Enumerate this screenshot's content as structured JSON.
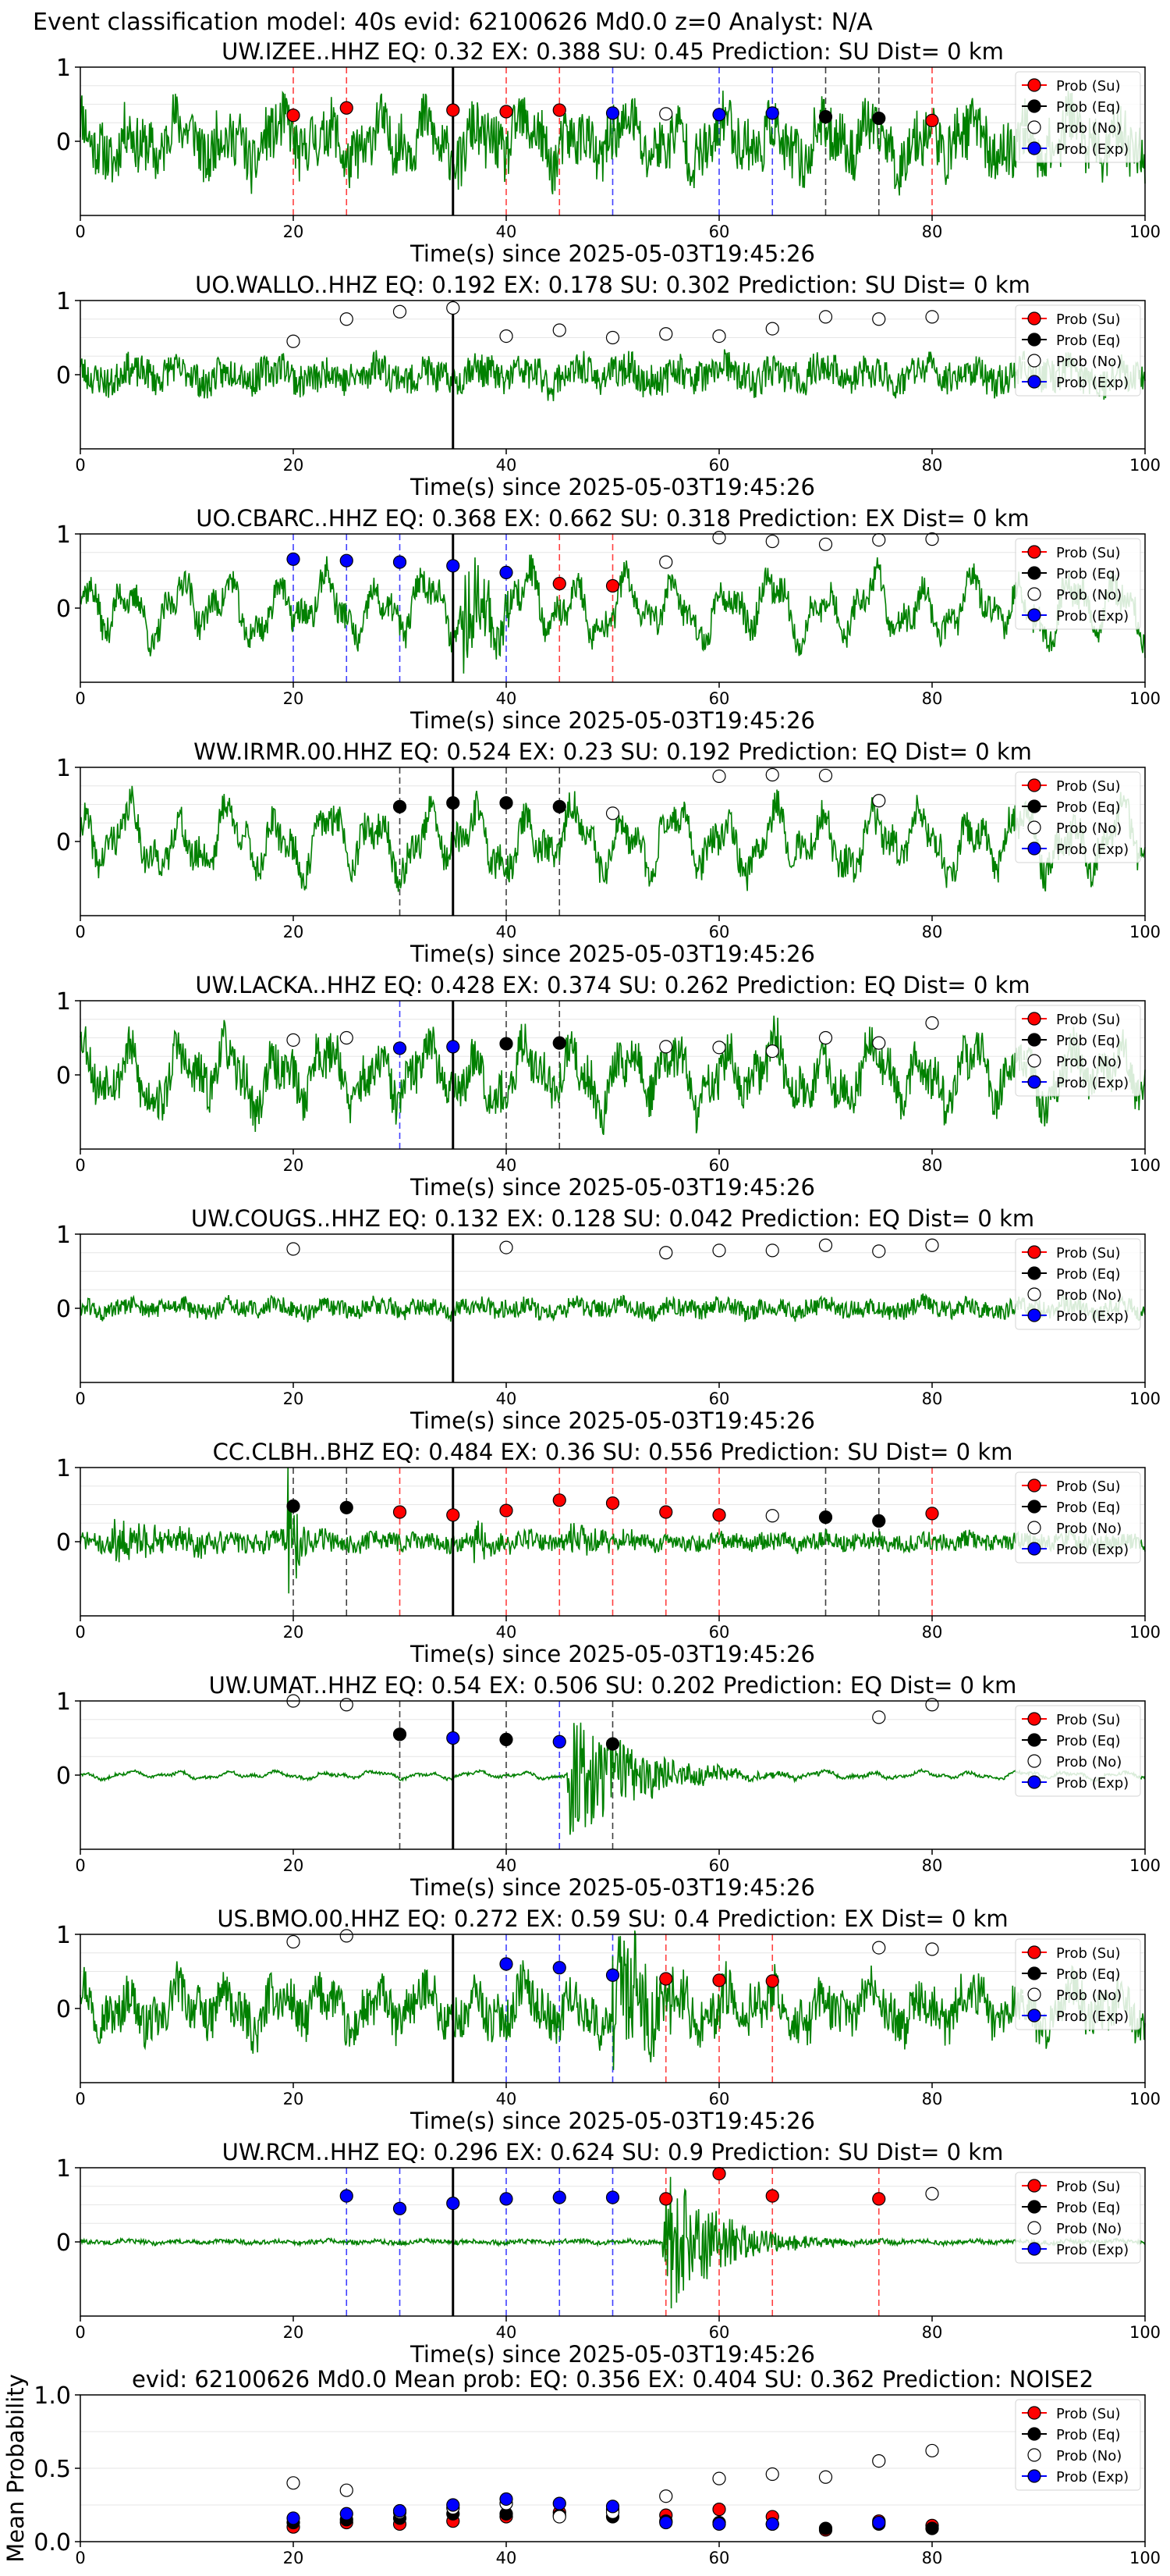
{
  "figure_title": "Event classification model: 40s evid: 62100626 Md0.0 z=0 Analyst: N/A",
  "xlabel": "Time(s) since 2025-05-03T19:45:26",
  "legend": [
    "Prob (Su)",
    "Prob (Eq)",
    "Prob (No)",
    "Prob (Exp)"
  ],
  "colors": {
    "su": "#ff0000",
    "eq": "#000000",
    "no": "#ffffff",
    "exp": "#0000ff",
    "trace": "#008000",
    "grid": "#e6e6e6"
  },
  "chart_data": [
    {
      "type": "line",
      "title": "UW.IZEE..HHZ   EQ: 0.32  EX: 0.388  SU: 0.45   Prediction: SU    Dist= 0 km",
      "xlim": [
        0,
        100
      ],
      "ylim": [
        -1,
        1
      ],
      "yticks": [
        "1",
        "0"
      ],
      "xticks": [
        "0",
        "20",
        "40",
        "60",
        "80",
        "100"
      ],
      "trace": {
        "amp": 0.36,
        "noise": 0.38,
        "seed": 11,
        "events": []
      },
      "origin_marker": 35,
      "points": [
        {
          "x": 20,
          "y": 0.35,
          "c": "su"
        },
        {
          "x": 25,
          "y": 0.45,
          "c": "su"
        },
        {
          "x": 35,
          "y": 0.42,
          "c": "su"
        },
        {
          "x": 40,
          "y": 0.4,
          "c": "su"
        },
        {
          "x": 45,
          "y": 0.42,
          "c": "su"
        },
        {
          "x": 50,
          "y": 0.38,
          "c": "exp"
        },
        {
          "x": 55,
          "y": 0.37,
          "c": "no"
        },
        {
          "x": 60,
          "y": 0.36,
          "c": "exp"
        },
        {
          "x": 65,
          "y": 0.38,
          "c": "exp"
        },
        {
          "x": 70,
          "y": 0.33,
          "c": "eq"
        },
        {
          "x": 75,
          "y": 0.31,
          "c": "eq"
        },
        {
          "x": 80,
          "y": 0.28,
          "c": "su"
        }
      ]
    },
    {
      "type": "line",
      "title": "UO.WALLO..HHZ   EQ: 0.192  EX: 0.178  SU: 0.302   Prediction: SU    Dist= 0 km",
      "xlim": [
        0,
        100
      ],
      "ylim": [
        -1,
        1
      ],
      "yticks": [
        "1",
        "0"
      ],
      "xticks": [
        "0",
        "20",
        "40",
        "60",
        "80",
        "100"
      ],
      "trace": {
        "amp": 0.14,
        "noise": 0.22,
        "seed": 23,
        "events": []
      },
      "origin_marker": 35,
      "points": [
        {
          "x": 20,
          "y": 0.45,
          "c": "no"
        },
        {
          "x": 25,
          "y": 0.75,
          "c": "no"
        },
        {
          "x": 30,
          "y": 0.85,
          "c": "no"
        },
        {
          "x": 35,
          "y": 0.9,
          "c": "no"
        },
        {
          "x": 40,
          "y": 0.52,
          "c": "no"
        },
        {
          "x": 45,
          "y": 0.6,
          "c": "no"
        },
        {
          "x": 50,
          "y": 0.5,
          "c": "no"
        },
        {
          "x": 55,
          "y": 0.55,
          "c": "no"
        },
        {
          "x": 60,
          "y": 0.52,
          "c": "no"
        },
        {
          "x": 65,
          "y": 0.62,
          "c": "no"
        },
        {
          "x": 70,
          "y": 0.78,
          "c": "no"
        },
        {
          "x": 75,
          "y": 0.75,
          "c": "no"
        },
        {
          "x": 80,
          "y": 0.78,
          "c": "no"
        }
      ]
    },
    {
      "type": "line",
      "title": "UO.CBARC..HHZ   EQ: 0.368  EX: 0.662  SU: 0.318   Prediction: EX    Dist= 0 km",
      "xlim": [
        0,
        100
      ],
      "ylim": [
        -1,
        1
      ],
      "yticks": [
        "1",
        "0"
      ],
      "xticks": [
        "0",
        "20",
        "40",
        "60",
        "80",
        "100"
      ],
      "trace": {
        "amp": 0.5,
        "noise": 0.2,
        "seed": 37,
        "events": [
          {
            "t": 36,
            "w": 3,
            "a": 0.8
          }
        ]
      },
      "origin_marker": 35,
      "points": [
        {
          "x": 20,
          "y": 0.66,
          "c": "exp"
        },
        {
          "x": 25,
          "y": 0.64,
          "c": "exp"
        },
        {
          "x": 30,
          "y": 0.62,
          "c": "exp"
        },
        {
          "x": 35,
          "y": 0.57,
          "c": "exp"
        },
        {
          "x": 40,
          "y": 0.48,
          "c": "exp"
        },
        {
          "x": 45,
          "y": 0.33,
          "c": "su"
        },
        {
          "x": 50,
          "y": 0.3,
          "c": "su"
        },
        {
          "x": 55,
          "y": 0.62,
          "c": "no"
        },
        {
          "x": 60,
          "y": 0.95,
          "c": "no"
        },
        {
          "x": 65,
          "y": 0.9,
          "c": "no"
        },
        {
          "x": 70,
          "y": 0.86,
          "c": "no"
        },
        {
          "x": 75,
          "y": 0.92,
          "c": "no"
        },
        {
          "x": 80,
          "y": 0.93,
          "c": "no"
        }
      ]
    },
    {
      "type": "line",
      "title": "WW.IRMR.00.HHZ   EQ: 0.524  EX: 0.23  SU: 0.192   Prediction: EQ    Dist= 0 km",
      "xlim": [
        0,
        100
      ],
      "ylim": [
        -1,
        1
      ],
      "yticks": [
        "1",
        "0"
      ],
      "xticks": [
        "0",
        "20",
        "40",
        "60",
        "80",
        "100"
      ],
      "trace": {
        "amp": 0.52,
        "noise": 0.22,
        "seed": 41,
        "events": []
      },
      "origin_marker": 35,
      "points": [
        {
          "x": 30,
          "y": 0.47,
          "c": "eq"
        },
        {
          "x": 35,
          "y": 0.52,
          "c": "eq"
        },
        {
          "x": 40,
          "y": 0.52,
          "c": "eq"
        },
        {
          "x": 45,
          "y": 0.47,
          "c": "eq"
        },
        {
          "x": 50,
          "y": 0.38,
          "c": "no"
        },
        {
          "x": 60,
          "y": 0.88,
          "c": "no"
        },
        {
          "x": 65,
          "y": 0.9,
          "c": "no"
        },
        {
          "x": 70,
          "y": 0.89,
          "c": "no"
        },
        {
          "x": 75,
          "y": 0.55,
          "c": "no"
        }
      ]
    },
    {
      "type": "line",
      "title": "UW.LACKA..HHZ   EQ: 0.428  EX: 0.374  SU: 0.262   Prediction: EQ    Dist= 0 km",
      "xlim": [
        0,
        100
      ],
      "ylim": [
        -1,
        1
      ],
      "yticks": [
        "1",
        "0"
      ],
      "xticks": [
        "0",
        "20",
        "40",
        "60",
        "80",
        "100"
      ],
      "trace": {
        "amp": 0.5,
        "noise": 0.3,
        "seed": 53,
        "events": []
      },
      "origin_marker": 35,
      "points": [
        {
          "x": 20,
          "y": 0.47,
          "c": "no"
        },
        {
          "x": 25,
          "y": 0.5,
          "c": "no"
        },
        {
          "x": 30,
          "y": 0.36,
          "c": "exp"
        },
        {
          "x": 35,
          "y": 0.38,
          "c": "exp"
        },
        {
          "x": 40,
          "y": 0.42,
          "c": "eq"
        },
        {
          "x": 45,
          "y": 0.43,
          "c": "eq"
        },
        {
          "x": 55,
          "y": 0.38,
          "c": "no"
        },
        {
          "x": 60,
          "y": 0.37,
          "c": "no"
        },
        {
          "x": 65,
          "y": 0.32,
          "c": "no"
        },
        {
          "x": 70,
          "y": 0.5,
          "c": "no"
        },
        {
          "x": 75,
          "y": 0.43,
          "c": "no"
        },
        {
          "x": 80,
          "y": 0.7,
          "c": "no"
        }
      ]
    },
    {
      "type": "line",
      "title": "UW.COUGS..HHZ   EQ: 0.132  EX: 0.128  SU: 0.042   Prediction: EQ    Dist= 0 km",
      "xlim": [
        0,
        100
      ],
      "ylim": [
        -1,
        1
      ],
      "yticks": [
        "1",
        "0"
      ],
      "xticks": [
        "0",
        "20",
        "40",
        "60",
        "80",
        "100"
      ],
      "trace": {
        "amp": 0.08,
        "noise": 0.12,
        "seed": 61,
        "events": []
      },
      "origin_marker": 35,
      "points": [
        {
          "x": 20,
          "y": 0.8,
          "c": "no"
        },
        {
          "x": 40,
          "y": 0.82,
          "c": "no"
        },
        {
          "x": 55,
          "y": 0.75,
          "c": "no"
        },
        {
          "x": 60,
          "y": 0.78,
          "c": "no"
        },
        {
          "x": 65,
          "y": 0.78,
          "c": "no"
        },
        {
          "x": 70,
          "y": 0.85,
          "c": "no"
        },
        {
          "x": 75,
          "y": 0.77,
          "c": "no"
        },
        {
          "x": 80,
          "y": 0.85,
          "c": "no"
        }
      ]
    },
    {
      "type": "line",
      "title": "CC.CLBH..BHZ   EQ: 0.484  EX: 0.36  SU: 0.556   Prediction: SU    Dist= 0 km",
      "xlim": [
        0,
        100
      ],
      "ylim": [
        -1,
        1
      ],
      "yticks": [
        "1",
        "0"
      ],
      "xticks": [
        "0",
        "20",
        "40",
        "60",
        "80",
        "100"
      ],
      "trace": {
        "amp": 0.05,
        "noise": 0.12,
        "seed": 71,
        "events": [
          {
            "t": 19.5,
            "w": 1.2,
            "a": 0.85
          },
          {
            "t": 3,
            "w": 8,
            "a": 0.25
          },
          {
            "t": 37,
            "w": 4,
            "a": 0.2
          },
          {
            "t": 46,
            "w": 3,
            "a": 0.25
          }
        ]
      },
      "origin_marker": 35,
      "points": [
        {
          "x": 20,
          "y": 0.48,
          "c": "eq"
        },
        {
          "x": 25,
          "y": 0.46,
          "c": "eq"
        },
        {
          "x": 30,
          "y": 0.4,
          "c": "su"
        },
        {
          "x": 35,
          "y": 0.36,
          "c": "su"
        },
        {
          "x": 40,
          "y": 0.42,
          "c": "su"
        },
        {
          "x": 45,
          "y": 0.56,
          "c": "su"
        },
        {
          "x": 50,
          "y": 0.52,
          "c": "su"
        },
        {
          "x": 55,
          "y": 0.4,
          "c": "su"
        },
        {
          "x": 60,
          "y": 0.36,
          "c": "su"
        },
        {
          "x": 65,
          "y": 0.35,
          "c": "no"
        },
        {
          "x": 70,
          "y": 0.33,
          "c": "eq"
        },
        {
          "x": 75,
          "y": 0.28,
          "c": "eq"
        },
        {
          "x": 80,
          "y": 0.38,
          "c": "su"
        }
      ]
    },
    {
      "type": "line",
      "title": "UW.UMAT..HHZ   EQ: 0.54  EX: 0.506  SU: 0.202   Prediction: EQ    Dist= 0 km",
      "xlim": [
        0,
        100
      ],
      "ylim": [
        -1,
        1
      ],
      "yticks": [
        "1",
        "0"
      ],
      "xticks": [
        "0",
        "20",
        "40",
        "60",
        "80",
        "100"
      ],
      "trace": {
        "amp": 0.06,
        "noise": 0.02,
        "seed": 83,
        "events": [
          {
            "t": 46,
            "w": 6,
            "a": 0.9
          }
        ]
      },
      "origin_marker": 35,
      "points": [
        {
          "x": 20,
          "y": 1.0,
          "c": "no"
        },
        {
          "x": 25,
          "y": 0.95,
          "c": "no"
        },
        {
          "x": 30,
          "y": 0.55,
          "c": "eq"
        },
        {
          "x": 35,
          "y": 0.5,
          "c": "exp"
        },
        {
          "x": 40,
          "y": 0.48,
          "c": "eq"
        },
        {
          "x": 45,
          "y": 0.45,
          "c": "exp"
        },
        {
          "x": 50,
          "y": 0.42,
          "c": "eq"
        },
        {
          "x": 75,
          "y": 0.78,
          "c": "no"
        },
        {
          "x": 80,
          "y": 0.95,
          "c": "no"
        }
      ]
    },
    {
      "type": "line",
      "title": "US.BMO.00.HHZ   EQ: 0.272  EX: 0.59  SU: 0.4   Prediction: EX    Dist= 0 km",
      "xlim": [
        0,
        100
      ],
      "ylim": [
        -1,
        1
      ],
      "yticks": [
        "1",
        "0"
      ],
      "xticks": [
        "0",
        "20",
        "40",
        "60",
        "80",
        "100"
      ],
      "trace": {
        "amp": 0.35,
        "noise": 0.3,
        "seed": 97,
        "events": [
          {
            "t": 50,
            "w": 5,
            "a": 0.9
          }
        ]
      },
      "origin_marker": 35,
      "points": [
        {
          "x": 20,
          "y": 0.9,
          "c": "no"
        },
        {
          "x": 25,
          "y": 0.98,
          "c": "no"
        },
        {
          "x": 40,
          "y": 0.6,
          "c": "exp"
        },
        {
          "x": 45,
          "y": 0.55,
          "c": "exp"
        },
        {
          "x": 50,
          "y": 0.45,
          "c": "exp"
        },
        {
          "x": 55,
          "y": 0.4,
          "c": "su"
        },
        {
          "x": 60,
          "y": 0.38,
          "c": "su"
        },
        {
          "x": 65,
          "y": 0.37,
          "c": "su"
        },
        {
          "x": 75,
          "y": 0.82,
          "c": "no"
        },
        {
          "x": 80,
          "y": 0.8,
          "c": "no"
        }
      ]
    },
    {
      "type": "line",
      "title": "UW.RCM..HHZ   EQ: 0.296  EX: 0.624  SU: 0.9   Prediction: SU    Dist= 0 km",
      "xlim": [
        0,
        100
      ],
      "ylim": [
        -1,
        1
      ],
      "yticks": [
        "1",
        "0"
      ],
      "xticks": [
        "0",
        "20",
        "40",
        "60",
        "80",
        "100"
      ],
      "trace": {
        "amp": 0.02,
        "noise": 0.03,
        "seed": 101,
        "events": [
          {
            "t": 55,
            "w": 5,
            "a": 0.95
          }
        ]
      },
      "origin_marker": 35,
      "points": [
        {
          "x": 25,
          "y": 0.62,
          "c": "exp"
        },
        {
          "x": 30,
          "y": 0.45,
          "c": "exp"
        },
        {
          "x": 35,
          "y": 0.52,
          "c": "exp"
        },
        {
          "x": 40,
          "y": 0.58,
          "c": "exp"
        },
        {
          "x": 45,
          "y": 0.6,
          "c": "exp"
        },
        {
          "x": 50,
          "y": 0.6,
          "c": "exp"
        },
        {
          "x": 55,
          "y": 0.58,
          "c": "su"
        },
        {
          "x": 60,
          "y": 0.92,
          "c": "su"
        },
        {
          "x": 65,
          "y": 0.62,
          "c": "su"
        },
        {
          "x": 75,
          "y": 0.58,
          "c": "su"
        },
        {
          "x": 80,
          "y": 0.65,
          "c": "no"
        }
      ]
    },
    {
      "type": "scatter",
      "title": "evid: 62100626  Md0.0   Mean prob:   EQ: 0.356  EX: 0.404  SU: 0.362   Prediction: NOISE2",
      "ylabel": "Mean Probability",
      "xlim": [
        0,
        100
      ],
      "ylim": [
        0,
        1
      ],
      "yticks": [
        "1.0",
        "0.5",
        "0.0"
      ],
      "xticks": [
        "0",
        "20",
        "40",
        "60",
        "80",
        "100"
      ],
      "series": [
        {
          "name": "Prob (Su)",
          "c": "su",
          "points": [
            [
              20,
              0.1
            ],
            [
              25,
              0.13
            ],
            [
              30,
              0.12
            ],
            [
              35,
              0.14
            ],
            [
              40,
              0.17
            ],
            [
              45,
              0.2
            ],
            [
              50,
              0.22
            ],
            [
              55,
              0.18
            ],
            [
              60,
              0.22
            ],
            [
              65,
              0.17
            ],
            [
              70,
              0.08
            ],
            [
              75,
              0.14
            ],
            [
              80,
              0.11
            ]
          ]
        },
        {
          "name": "Prob (Eq)",
          "c": "eq",
          "points": [
            [
              20,
              0.13
            ],
            [
              25,
              0.15
            ],
            [
              30,
              0.16
            ],
            [
              35,
              0.19
            ],
            [
              40,
              0.19
            ],
            [
              45,
              0.18
            ],
            [
              50,
              0.17
            ],
            [
              55,
              0.14
            ],
            [
              60,
              0.13
            ],
            [
              65,
              0.12
            ],
            [
              70,
              0.09
            ],
            [
              75,
              0.12
            ],
            [
              80,
              0.09
            ]
          ]
        },
        {
          "name": "Prob (No)",
          "c": "no",
          "points": [
            [
              20,
              0.4
            ],
            [
              25,
              0.35
            ],
            [
              30,
              0.2
            ],
            [
              35,
              0.23
            ],
            [
              40,
              0.26
            ],
            [
              45,
              0.17
            ],
            [
              50,
              0.2
            ],
            [
              55,
              0.31
            ],
            [
              60,
              0.43
            ],
            [
              65,
              0.46
            ],
            [
              70,
              0.44
            ],
            [
              75,
              0.55
            ],
            [
              80,
              0.62
            ]
          ]
        },
        {
          "name": "Prob (Exp)",
          "c": "exp",
          "points": [
            [
              20,
              0.16
            ],
            [
              25,
              0.19
            ],
            [
              30,
              0.21
            ],
            [
              35,
              0.25
            ],
            [
              40,
              0.29
            ],
            [
              45,
              0.26
            ],
            [
              50,
              0.24
            ],
            [
              55,
              0.13
            ],
            [
              60,
              0.12
            ],
            [
              65,
              0.12
            ],
            [
              75,
              0.13
            ]
          ]
        }
      ]
    }
  ]
}
